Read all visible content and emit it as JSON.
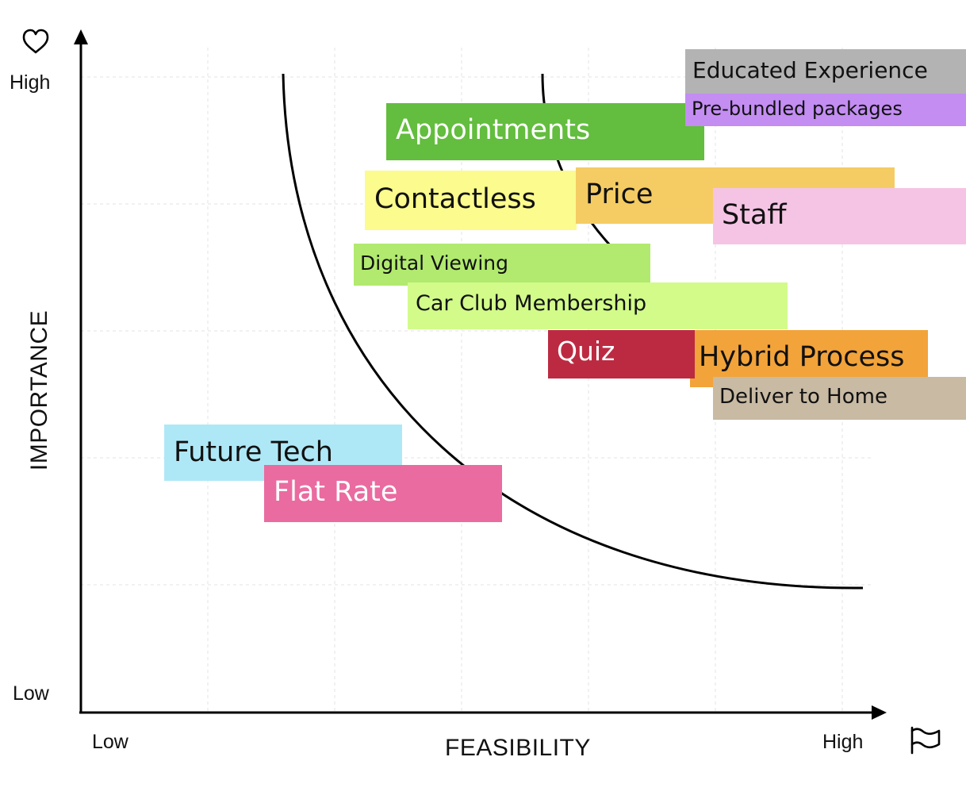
{
  "axes": {
    "y_title": "IMPORTANCE",
    "x_title": "FEASIBILITY",
    "y_high": "High",
    "y_low": "Low",
    "x_low": "Low",
    "x_high": "High",
    "y_icon": "heart-icon",
    "x_icon": "flag-icon"
  },
  "notes": [
    {
      "id": "future-tech",
      "text": "Future Tech",
      "color": "#aee8f7",
      "text_color": "#111111"
    },
    {
      "id": "flat-rate",
      "text": "Flat Rate",
      "color": "#ea6ba0",
      "text_color": "#ffffff"
    },
    {
      "id": "appointments",
      "text": "Appointments",
      "color": "#63bd3e",
      "text_color": "#ffffff"
    },
    {
      "id": "contactless",
      "text": "Contactless",
      "color": "#fbfb8e",
      "text_color": "#111111"
    },
    {
      "id": "price",
      "text": "Price",
      "color": "#f5cc63",
      "text_color": "#111111"
    },
    {
      "id": "staff",
      "text": "Staff",
      "color": "#f5c4e4",
      "text_color": "#111111"
    },
    {
      "id": "digital-viewing",
      "text": "Digital Viewing",
      "color": "#b1ea6e",
      "text_color": "#111111"
    },
    {
      "id": "car-club-membership",
      "text": "Car Club Membership",
      "color": "#d2fb8a",
      "text_color": "#111111"
    },
    {
      "id": "hybrid-process",
      "text": "Hybrid Process",
      "color": "#f2a33a",
      "text_color": "#111111"
    },
    {
      "id": "quiz",
      "text": "Quiz",
      "color": "#bc2a41",
      "text_color": "#ffffff"
    },
    {
      "id": "deliver-to-home",
      "text": "Deliver to Home",
      "color": "#c8baa3",
      "text_color": "#111111"
    },
    {
      "id": "educated-experience",
      "text": "Educated Experience",
      "color": "#b3b3b3",
      "text_color": "#111111"
    },
    {
      "id": "pre-bundled-packages",
      "text": "Pre-bundled packages",
      "color": "#c38df2",
      "text_color": "#111111"
    }
  ]
}
